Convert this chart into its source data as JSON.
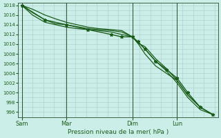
{
  "background_color": "#cceee8",
  "grid_color": "#aacccc",
  "line_color": "#1a5c1a",
  "marker_color": "#1a5c1a",
  "ylabel_values": [
    996,
    998,
    1000,
    1002,
    1004,
    1006,
    1008,
    1010,
    1012,
    1014,
    1016,
    1018
  ],
  "xlabel": "Pression niveau de la mer( hPa )",
  "xtick_labels": [
    "Sam",
    "Mar",
    "Dim",
    "Lun"
  ],
  "xtick_positions": [
    0,
    25,
    62,
    87
  ],
  "ylim": [
    995.0,
    1018.5
  ],
  "xlim": [
    -2,
    110
  ],
  "vlines": [
    0,
    25,
    62,
    87
  ],
  "lines": [
    {
      "x": [
        0,
        6,
        13,
        19,
        25,
        31,
        37,
        43,
        50,
        56,
        62,
        65,
        69,
        75,
        81,
        87,
        93,
        100,
        107
      ],
      "y": [
        1018,
        1017.2,
        1016,
        1015.2,
        1014.5,
        1014.0,
        1013.5,
        1013.2,
        1013.0,
        1012.8,
        1011.5,
        1010.2,
        1009.5,
        1007.0,
        1005.0,
        1002.5,
        999.5,
        997.0,
        995.5
      ],
      "has_markers": false,
      "lw": 0.9
    },
    {
      "x": [
        0,
        6,
        13,
        19,
        25,
        31,
        37,
        43,
        50,
        56,
        62,
        65,
        69,
        75,
        81,
        87,
        93,
        100,
        107
      ],
      "y": [
        1018,
        1016.5,
        1015.0,
        1014.2,
        1014.0,
        1013.6,
        1013.2,
        1013.0,
        1012.8,
        1012.5,
        1011.5,
        1010.5,
        1009.0,
        1006.5,
        1004.5,
        1002.0,
        999.0,
        996.5,
        995.5
      ],
      "has_markers": false,
      "lw": 0.9
    },
    {
      "x": [
        0,
        6,
        13,
        19,
        25,
        31,
        37,
        43,
        50,
        56,
        62,
        65,
        69,
        75,
        81,
        87,
        93,
        100,
        107
      ],
      "y": [
        1018,
        1016.0,
        1014.5,
        1014.0,
        1013.5,
        1013.2,
        1013.0,
        1012.8,
        1012.5,
        1012.0,
        1011.5,
        1010.2,
        1008.0,
        1005.5,
        1004.0,
        1002.5,
        999.5,
        997.0,
        995.5
      ],
      "has_markers": false,
      "lw": 0.9
    },
    {
      "x": [
        0,
        13,
        25,
        37,
        50,
        56,
        62,
        65,
        69,
        75,
        81,
        87,
        93,
        100,
        107
      ],
      "y": [
        1018,
        1015.0,
        1014.0,
        1013.0,
        1012.0,
        1011.5,
        1011.5,
        1010.5,
        1009.0,
        1006.5,
        1004.8,
        1003.0,
        1000.0,
        997.0,
        995.5
      ],
      "has_markers": true,
      "lw": 1.0
    }
  ]
}
